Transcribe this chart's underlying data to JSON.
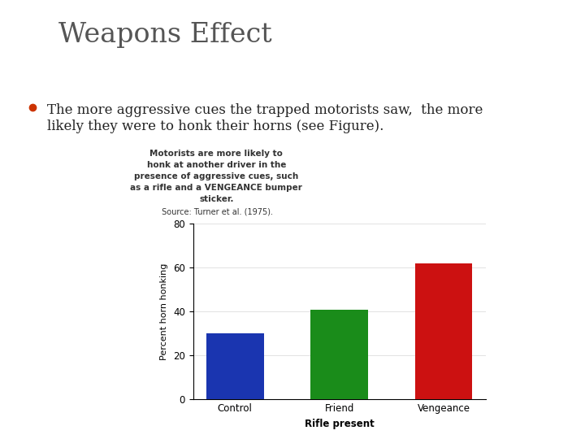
{
  "title": "Weapons Effect",
  "bullet_text_line1": "The more aggressive cues the trapped motorists saw,  the more",
  "bullet_text_line2": "likely they were to honk their horns (see Figure).",
  "caption_bold": "Motorists are more likely to\nhonk at another driver in the\npresence of aggressive cues, such\nas a rifle and a VENGEANCE bumper\nsticker.",
  "caption_source": " Source: Turner et al. (1975).",
  "categories": [
    "Control",
    "Friend",
    "Vengeance"
  ],
  "values": [
    30,
    41,
    62
  ],
  "bar_colors": [
    "#1a35b0",
    "#1a8c1a",
    "#cc1111"
  ],
  "ylabel": "Percent horn honking",
  "xlabel": "Rifle present",
  "ylim": [
    0,
    80
  ],
  "yticks": [
    0,
    20,
    40,
    60,
    80
  ],
  "bg_color": "#ffffff",
  "title_color": "#555555",
  "bullet_color": "#cc3300",
  "text_color": "#222222",
  "caption_color": "#333333"
}
